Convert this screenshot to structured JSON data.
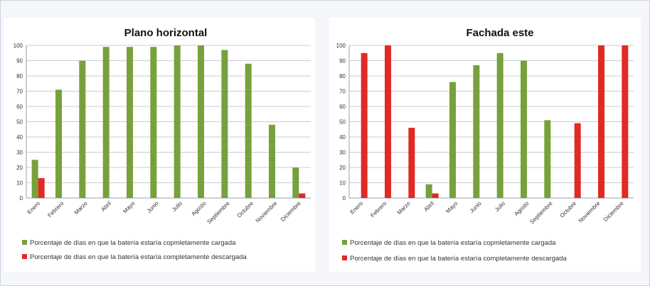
{
  "colors": {
    "cargada": "#77a13b",
    "descargada": "#e02a24",
    "grid": "#c9ccd6"
  },
  "chart_data": [
    {
      "type": "bar",
      "title": "Plano horizontal",
      "categories": [
        "Enero",
        "Febrero",
        "Marzo",
        "Abril",
        "Mayo",
        "Junio",
        "Julio",
        "Agosto",
        "Septiembre",
        "Octubre",
        "Noviembre",
        "Diciembre"
      ],
      "ylim": [
        0,
        100
      ],
      "yticks": [
        0,
        10,
        20,
        30,
        40,
        50,
        60,
        70,
        80,
        90,
        100
      ],
      "grid": true,
      "legend_position": "bottom",
      "series": [
        {
          "name": "Porcentaje de días en que la batería estaría copmletamente cargada",
          "color": "#77a13b",
          "values": [
            25,
            71,
            90,
            99,
            99,
            99,
            100,
            100,
            97,
            88,
            48,
            20
          ]
        },
        {
          "name": "Porcentaje de días en que la batería estaría completamente descargada",
          "color": "#e02a24",
          "values": [
            13,
            0,
            0,
            0,
            0,
            0,
            0,
            0,
            0,
            0,
            0,
            3
          ]
        }
      ]
    },
    {
      "type": "bar",
      "title": "Fachada este",
      "categories": [
        "Enero",
        "Febrero",
        "Marzo",
        "Abril",
        "Mayo",
        "Junio",
        "Julio",
        "Agosto",
        "Septiembre",
        "Octubre",
        "Noviembre",
        "Diciembre"
      ],
      "ylim": [
        0,
        100
      ],
      "yticks": [
        0,
        10,
        20,
        30,
        40,
        50,
        60,
        70,
        80,
        90,
        100
      ],
      "grid": true,
      "legend_position": "bottom",
      "series": [
        {
          "name": "Porcentaje de días en que la batería estaría copmletamente cargada",
          "color": "#77a13b",
          "values": [
            0,
            0,
            0,
            9,
            76,
            87,
            95,
            90,
            51,
            0,
            0,
            0
          ]
        },
        {
          "name": "Porcentaje de días en que la batería estaría completamente descargada",
          "color": "#e02a24",
          "values": [
            95,
            100,
            46,
            3,
            0,
            0,
            0,
            0,
            0,
            49,
            100,
            100
          ]
        }
      ]
    }
  ]
}
